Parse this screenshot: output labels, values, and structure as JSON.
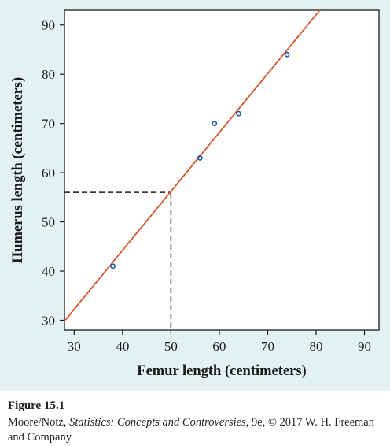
{
  "chart_data": {
    "type": "scatter",
    "xlabel": "Femur length (centimeters)",
    "ylabel": "Humerus length (centimeters)",
    "xlim": [
      28,
      93
    ],
    "ylim": [
      28,
      93
    ],
    "xticks": [
      30,
      40,
      50,
      60,
      70,
      80,
      90
    ],
    "yticks": [
      30,
      40,
      50,
      60,
      70,
      80,
      90
    ],
    "points": [
      {
        "x": 38,
        "y": 41
      },
      {
        "x": 56,
        "y": 63
      },
      {
        "x": 59,
        "y": 70
      },
      {
        "x": 64,
        "y": 72
      },
      {
        "x": 74,
        "y": 84
      }
    ],
    "regression_line": {
      "slope": 1.197,
      "intercept": -3.66,
      "x_range": [
        28,
        81
      ]
    },
    "reference": {
      "x": 50,
      "y": 56
    },
    "grid": false,
    "colors": {
      "line": "#d4562b",
      "points": "#1f5fa8",
      "axes": "#1a1a1a",
      "reference": "#1a1a1a",
      "panel": "#e4f1f2"
    }
  },
  "caption": {
    "label": "Figure 15.1",
    "credit_before": "Moore/Notz, ",
    "credit_title": "Statistics: Concepts and Controversies",
    "credit_after": ", 9e, © 2017 W. H. Freeman and Company"
  }
}
